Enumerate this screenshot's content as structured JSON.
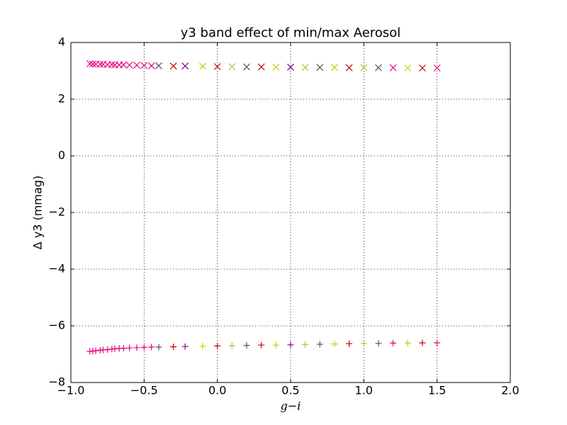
{
  "chart_data": {
    "type": "scatter",
    "title": "y3 band effect of min/max Aerosol",
    "xlabel": "g−i",
    "ylabel": "Δ y3 (mmag)",
    "xlim": [
      -1,
      2
    ],
    "ylim": [
      -8,
      4
    ],
    "xticks": [
      {
        "value": -1,
        "label": "−1.0"
      },
      {
        "value": -0.5,
        "label": "−0.5"
      },
      {
        "value": 0,
        "label": "0.0"
      },
      {
        "value": 0.5,
        "label": "0.5"
      },
      {
        "value": 1,
        "label": "1.0"
      },
      {
        "value": 1.5,
        "label": "1.5"
      },
      {
        "value": 2,
        "label": "2.0"
      }
    ],
    "yticks": [
      {
        "value": -8,
        "label": "−8"
      },
      {
        "value": -6,
        "label": "−6"
      },
      {
        "value": -4,
        "label": "−4"
      },
      {
        "value": -2,
        "label": "−2"
      },
      0,
      2,
      4
    ],
    "grid": true,
    "series": [
      {
        "marker": "x",
        "x": [
          -0.87,
          -0.85,
          -0.83,
          -0.8,
          -0.78,
          -0.75,
          -0.72,
          -0.7,
          -0.67,
          -0.64,
          -0.6,
          -0.55,
          -0.5,
          -0.45,
          -0.4,
          -0.3,
          -0.22,
          -0.1,
          0.0,
          0.1,
          0.2,
          0.3,
          0.4,
          0.5,
          0.6,
          0.7,
          0.8,
          0.9,
          1.0,
          1.1,
          1.2,
          1.3,
          1.4,
          1.5
        ],
        "values": [
          3.25,
          3.24,
          3.24,
          3.23,
          3.23,
          3.22,
          3.22,
          3.21,
          3.21,
          3.21,
          3.2,
          3.2,
          3.19,
          3.18,
          3.18,
          3.17,
          3.17,
          3.16,
          3.15,
          3.15,
          3.14,
          3.14,
          3.13,
          3.13,
          3.12,
          3.12,
          3.12,
          3.11,
          3.11,
          3.11,
          3.11,
          3.1,
          3.1,
          3.1
        ],
        "colors": [
          "#e6007e",
          "#e6007e",
          "#e6007e",
          "#e6007e",
          "#e6007e",
          "#e6007e",
          "#e6007e",
          "#e6007e",
          "#e6007e",
          "#e6007e",
          "#e6007e",
          "#e6007e",
          "#e6007e",
          "#e6007e",
          "#555555",
          "#cc0000",
          "#8b008b",
          "#cccc00",
          "#cc0000",
          "#9acd32",
          "#555555",
          "#cc0000",
          "#cccc00",
          "#8b008b",
          "#9acd32",
          "#555555",
          "#cccc00",
          "#cc0000",
          "#9acd32",
          "#555555",
          "#e6007e",
          "#cccc00",
          "#cc0000",
          "#e6007e"
        ]
      },
      {
        "marker": "+",
        "x": [
          -0.87,
          -0.85,
          -0.83,
          -0.8,
          -0.78,
          -0.75,
          -0.72,
          -0.7,
          -0.67,
          -0.64,
          -0.6,
          -0.55,
          -0.5,
          -0.45,
          -0.4,
          -0.3,
          -0.22,
          -0.1,
          0.0,
          0.1,
          0.2,
          0.3,
          0.4,
          0.5,
          0.6,
          0.7,
          0.8,
          0.9,
          1.0,
          1.1,
          1.2,
          1.3,
          1.4,
          1.5
        ],
        "values": [
          -6.9,
          -6.89,
          -6.88,
          -6.86,
          -6.85,
          -6.84,
          -6.82,
          -6.81,
          -6.8,
          -6.79,
          -6.78,
          -6.77,
          -6.76,
          -6.75,
          -6.75,
          -6.74,
          -6.73,
          -6.72,
          -6.71,
          -6.7,
          -6.69,
          -6.68,
          -6.68,
          -6.67,
          -6.66,
          -6.65,
          -6.64,
          -6.63,
          -6.62,
          -6.62,
          -6.61,
          -6.61,
          -6.6,
          -6.6
        ],
        "colors": [
          "#e6007e",
          "#e6007e",
          "#e6007e",
          "#e6007e",
          "#e6007e",
          "#e6007e",
          "#e6007e",
          "#e6007e",
          "#e6007e",
          "#e6007e",
          "#e6007e",
          "#e6007e",
          "#e6007e",
          "#e6007e",
          "#555555",
          "#cc0000",
          "#8b008b",
          "#cccc00",
          "#cc0000",
          "#9acd32",
          "#555555",
          "#cc0000",
          "#cccc00",
          "#8b008b",
          "#9acd32",
          "#555555",
          "#cccc00",
          "#cc0000",
          "#9acd32",
          "#555555",
          "#e6007e",
          "#cccc00",
          "#cc0000",
          "#e6007e"
        ]
      }
    ]
  }
}
